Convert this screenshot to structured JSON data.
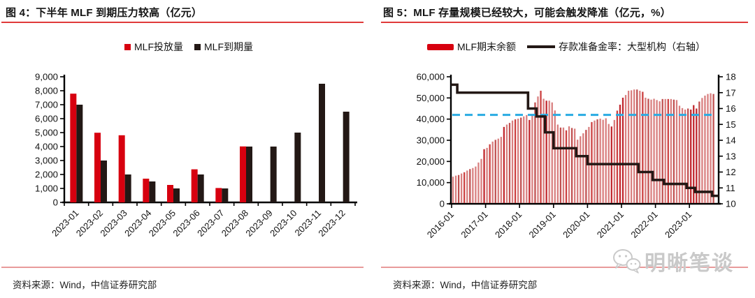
{
  "colors": {
    "accent_red": "#d7000f",
    "dark_bar": "#231815",
    "thin_bar_red": "#d97f7f",
    "reference_dashed_blue": "#29abe2",
    "title_rule_red": "#e03a3a",
    "source_rule_pink": "#e89a9a"
  },
  "panels": [
    {
      "title": "图 4：下半年 MLF 到期压力较高（亿元）",
      "legend": [
        {
          "label": "MLF投放量",
          "color": "#d7000f",
          "marker": "square"
        },
        {
          "label": "MLF到期量",
          "color": "#231815",
          "marker": "square"
        }
      ],
      "source": "资料来源：Wind，中信证券研究部"
    },
    {
      "title": "图 5：MLF 存量规模已经较大，可能会触发降准（亿元，%）",
      "legend": [
        {
          "label": "MLF期末余额",
          "color": "#d7000f",
          "marker": "thick-line"
        },
        {
          "label": "存款准备金率：大型机构（右轴）",
          "color": "#231815",
          "marker": "line"
        }
      ],
      "source": "资料来源：Wind，中信证券研究部",
      "watermark": "明晰笔谈"
    }
  ],
  "chart_data": [
    {
      "type": "bar",
      "title": "下半年 MLF 到期压力较高（亿元）",
      "categories": [
        "2023-01",
        "2023-02",
        "2023-03",
        "2023-04",
        "2023-05",
        "2023-06",
        "2023-07",
        "2023-08",
        "2023-09",
        "2023-10",
        "2023-11",
        "2023-12"
      ],
      "series": [
        {
          "name": "MLF投放量",
          "color": "#d7000f",
          "values": [
            7790,
            4990,
            4810,
            1700,
            1250,
            2370,
            1030,
            4010,
            0,
            0,
            0,
            0
          ]
        },
        {
          "name": "MLF到期量",
          "color": "#231815",
          "values": [
            7000,
            3000,
            2000,
            1500,
            1000,
            2000,
            1000,
            4000,
            4000,
            5000,
            8500,
            6500
          ]
        }
      ],
      "ylim": [
        0,
        9000
      ],
      "y_ticks": [
        0,
        1000,
        2000,
        3000,
        4000,
        5000,
        6000,
        7000,
        8000,
        9000
      ],
      "y_tick_labels": [
        "0",
        "1,000",
        "2,000",
        "3,000",
        "4,000",
        "5,000",
        "6,000",
        "7,000",
        "8,000",
        "9,000"
      ],
      "grid": false,
      "legend_position": "top"
    },
    {
      "type": "bar+line",
      "title": "MLF 存量规模已经较大，可能会触发降准（亿元，%）",
      "x": [
        "2016-01",
        "2016-02",
        "2016-03",
        "2016-04",
        "2016-05",
        "2016-06",
        "2016-07",
        "2016-08",
        "2016-09",
        "2016-10",
        "2016-11",
        "2016-12",
        "2017-01",
        "2017-02",
        "2017-03",
        "2017-04",
        "2017-05",
        "2017-06",
        "2017-07",
        "2017-08",
        "2017-09",
        "2017-10",
        "2017-11",
        "2017-12",
        "2018-01",
        "2018-02",
        "2018-03",
        "2018-04",
        "2018-05",
        "2018-06",
        "2018-07",
        "2018-08",
        "2018-09",
        "2018-10",
        "2018-11",
        "2018-12",
        "2019-01",
        "2019-02",
        "2019-03",
        "2019-04",
        "2019-05",
        "2019-06",
        "2019-07",
        "2019-08",
        "2019-09",
        "2019-10",
        "2019-11",
        "2019-12",
        "2020-01",
        "2020-02",
        "2020-03",
        "2020-04",
        "2020-05",
        "2020-06",
        "2020-07",
        "2020-08",
        "2020-09",
        "2020-10",
        "2020-11",
        "2020-12",
        "2021-01",
        "2021-02",
        "2021-03",
        "2021-04",
        "2021-05",
        "2021-06",
        "2021-07",
        "2021-08",
        "2021-09",
        "2021-10",
        "2021-11",
        "2021-12",
        "2022-01",
        "2022-02",
        "2022-03",
        "2022-04",
        "2022-05",
        "2022-06",
        "2022-07",
        "2022-08",
        "2022-09",
        "2022-10",
        "2022-11",
        "2022-12",
        "2023-01",
        "2023-02",
        "2023-03",
        "2023-04",
        "2023-05",
        "2023-06",
        "2023-07",
        "2023-08",
        "2023-09"
      ],
      "series": [
        {
          "name": "MLF期末余额",
          "chart": "bar",
          "axis": "left",
          "color": "#d97f7f",
          "values": [
            12800,
            13300,
            13600,
            14300,
            14900,
            15700,
            16400,
            16900,
            17600,
            19500,
            21200,
            25800,
            26400,
            28100,
            29400,
            30200,
            30800,
            31600,
            36300,
            37400,
            38200,
            39300,
            39900,
            40200,
            40700,
            41300,
            41900,
            39600,
            41900,
            47900,
            50700,
            53400,
            49600,
            48700,
            48700,
            47900,
            44100,
            37400,
            36000,
            36000,
            34700,
            36600,
            35800,
            35500,
            30300,
            31900,
            33300,
            34900,
            36300,
            38600,
            39300,
            39900,
            40200,
            39700,
            40400,
            37700,
            36500,
            39600,
            44000,
            46800,
            50100,
            51400,
            53400,
            53600,
            54000,
            54000,
            53400,
            52900,
            50100,
            49600,
            49200,
            49600,
            49000,
            48400,
            49500,
            49500,
            49500,
            49500,
            49200,
            49000,
            46300,
            45200,
            44500,
            45000,
            44500,
            46600,
            45000,
            48300,
            50000,
            51100,
            51900,
            52200,
            51900
          ]
        },
        {
          "name": "存款准备金率：大型机构（右轴）",
          "chart": "step-line",
          "axis": "right",
          "color": "#231815",
          "values": [
            17.5,
            17.5,
            17,
            17,
            17,
            17,
            17,
            17,
            17,
            17,
            17,
            17,
            17,
            17,
            17,
            17,
            17,
            17,
            17,
            17,
            17,
            17,
            17,
            17,
            17,
            17,
            17,
            16,
            16,
            16,
            15.5,
            15.5,
            15.5,
            14.5,
            14.5,
            14.5,
            13.5,
            13.5,
            13.5,
            13.5,
            13.5,
            13.5,
            13.5,
            13.5,
            13,
            13,
            13,
            13,
            12.5,
            12.5,
            12.5,
            12.5,
            12.5,
            12.5,
            12.5,
            12.5,
            12.5,
            12.5,
            12.5,
            12.5,
            12.5,
            12.5,
            12.5,
            12.5,
            12.5,
            12.5,
            12,
            12,
            12,
            12,
            12,
            11.5,
            11.5,
            11.5,
            11.5,
            11.25,
            11.25,
            11.25,
            11.25,
            11.25,
            11.25,
            11.25,
            11.25,
            11,
            11,
            11,
            10.75,
            10.75,
            10.75,
            10.75,
            10.75,
            10.75,
            10.5
          ]
        }
      ],
      "reference_line": {
        "axis": "left",
        "value": 42000,
        "style": "dashed",
        "color": "#29abe2"
      },
      "ylim_left": [
        0,
        60000
      ],
      "ylim_right": [
        10,
        18
      ],
      "y_ticks_left": [
        0,
        10000,
        20000,
        30000,
        40000,
        50000,
        60000
      ],
      "y_tick_labels_left": [
        "0",
        "10,000",
        "20,000",
        "30,000",
        "40,000",
        "50,000",
        "60,000"
      ],
      "y_ticks_right": [
        10,
        11,
        12,
        13,
        14,
        15,
        16,
        17,
        18
      ],
      "y_tick_labels_right": [
        "10",
        "11",
        "12",
        "13",
        "14",
        "15",
        "16",
        "17",
        "18"
      ],
      "x_tick_labels": [
        "2016-01",
        "2017-01",
        "2018-01",
        "2019-01",
        "2020-01",
        "2021-01",
        "2022-01",
        "2023-01"
      ],
      "grid": false,
      "legend_position": "top"
    }
  ]
}
